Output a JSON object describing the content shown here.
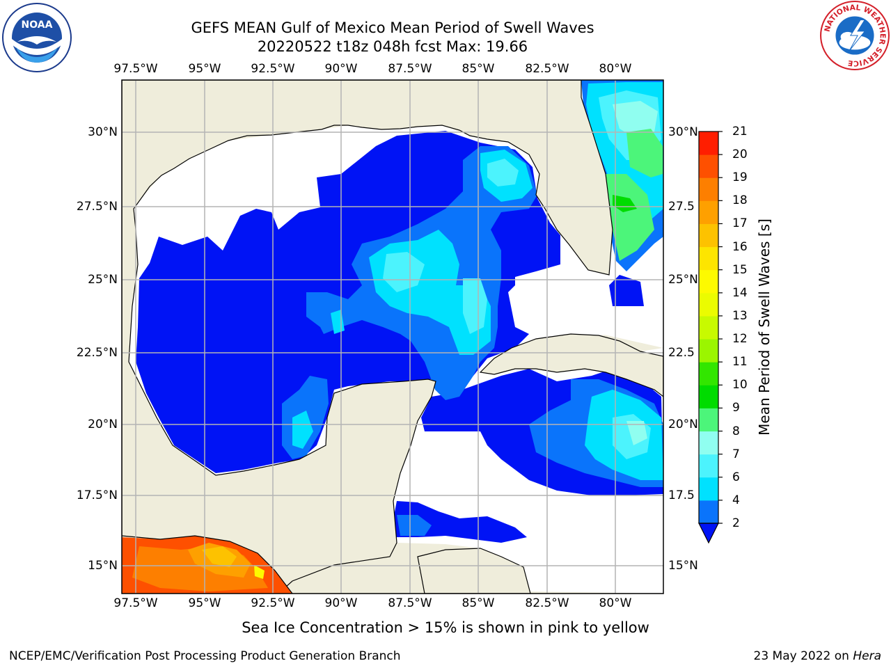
{
  "header": {
    "title_line1": "GEFS MEAN Gulf of Mexico Mean Period of Swell Waves",
    "title_line2": "20220522 t18z 048h fcst   Max: 19.66"
  },
  "logos": {
    "left": "noaa-logo",
    "left_text": "NOAA",
    "right": "national-weather-service-logo",
    "right_text": "NATIONAL WEATHER SERVICE"
  },
  "map": {
    "lon_ticks": [
      "97.5°W",
      "95°W",
      "92.5°W",
      "90°W",
      "87.5°W",
      "85°W",
      "82.5°W",
      "80°W"
    ],
    "lat_ticks_left": [
      "30°N",
      "27.5°N",
      "25°N",
      "22.5°N",
      "20°N",
      "17.5°N",
      "15°N"
    ],
    "lat_ticks_right": [
      "30°N",
      "27.5",
      "25°N",
      "22.5",
      "20°N",
      "17.5",
      "15°N"
    ],
    "extent": {
      "lon": [
        -98,
        -78.3
      ],
      "lat": [
        14,
        31.8
      ]
    },
    "land_color": "#efeddb",
    "grid": true
  },
  "colorbar": {
    "label": "Mean Period of Swell Waves [s]",
    "ticks": [
      "2",
      "4",
      "6",
      "7",
      "8",
      "9",
      "10",
      "11",
      "12",
      "13",
      "14",
      "15",
      "16",
      "17",
      "18",
      "19",
      "20",
      "21"
    ],
    "colors": [
      "#0a74fb",
      "#00e1fe",
      "#4cf3fd",
      "#90fef0",
      "#4cf57a",
      "#00dc00",
      "#32e600",
      "#9bf500",
      "#c8fa00",
      "#ebfc00",
      "#fdfa00",
      "#fde500",
      "#fdc200",
      "#fea000",
      "#fd7f00",
      "#fe5000",
      "#ff1e00"
    ],
    "under_color": "#0013f5"
  },
  "footer": {
    "note": "Sea Ice Concentration > 15% is shown in pink to yellow",
    "credit": "NCEP/EMC/Verification Post Processing Product Generation Branch",
    "date": "23 May 2022 on ",
    "host": "Hera"
  }
}
